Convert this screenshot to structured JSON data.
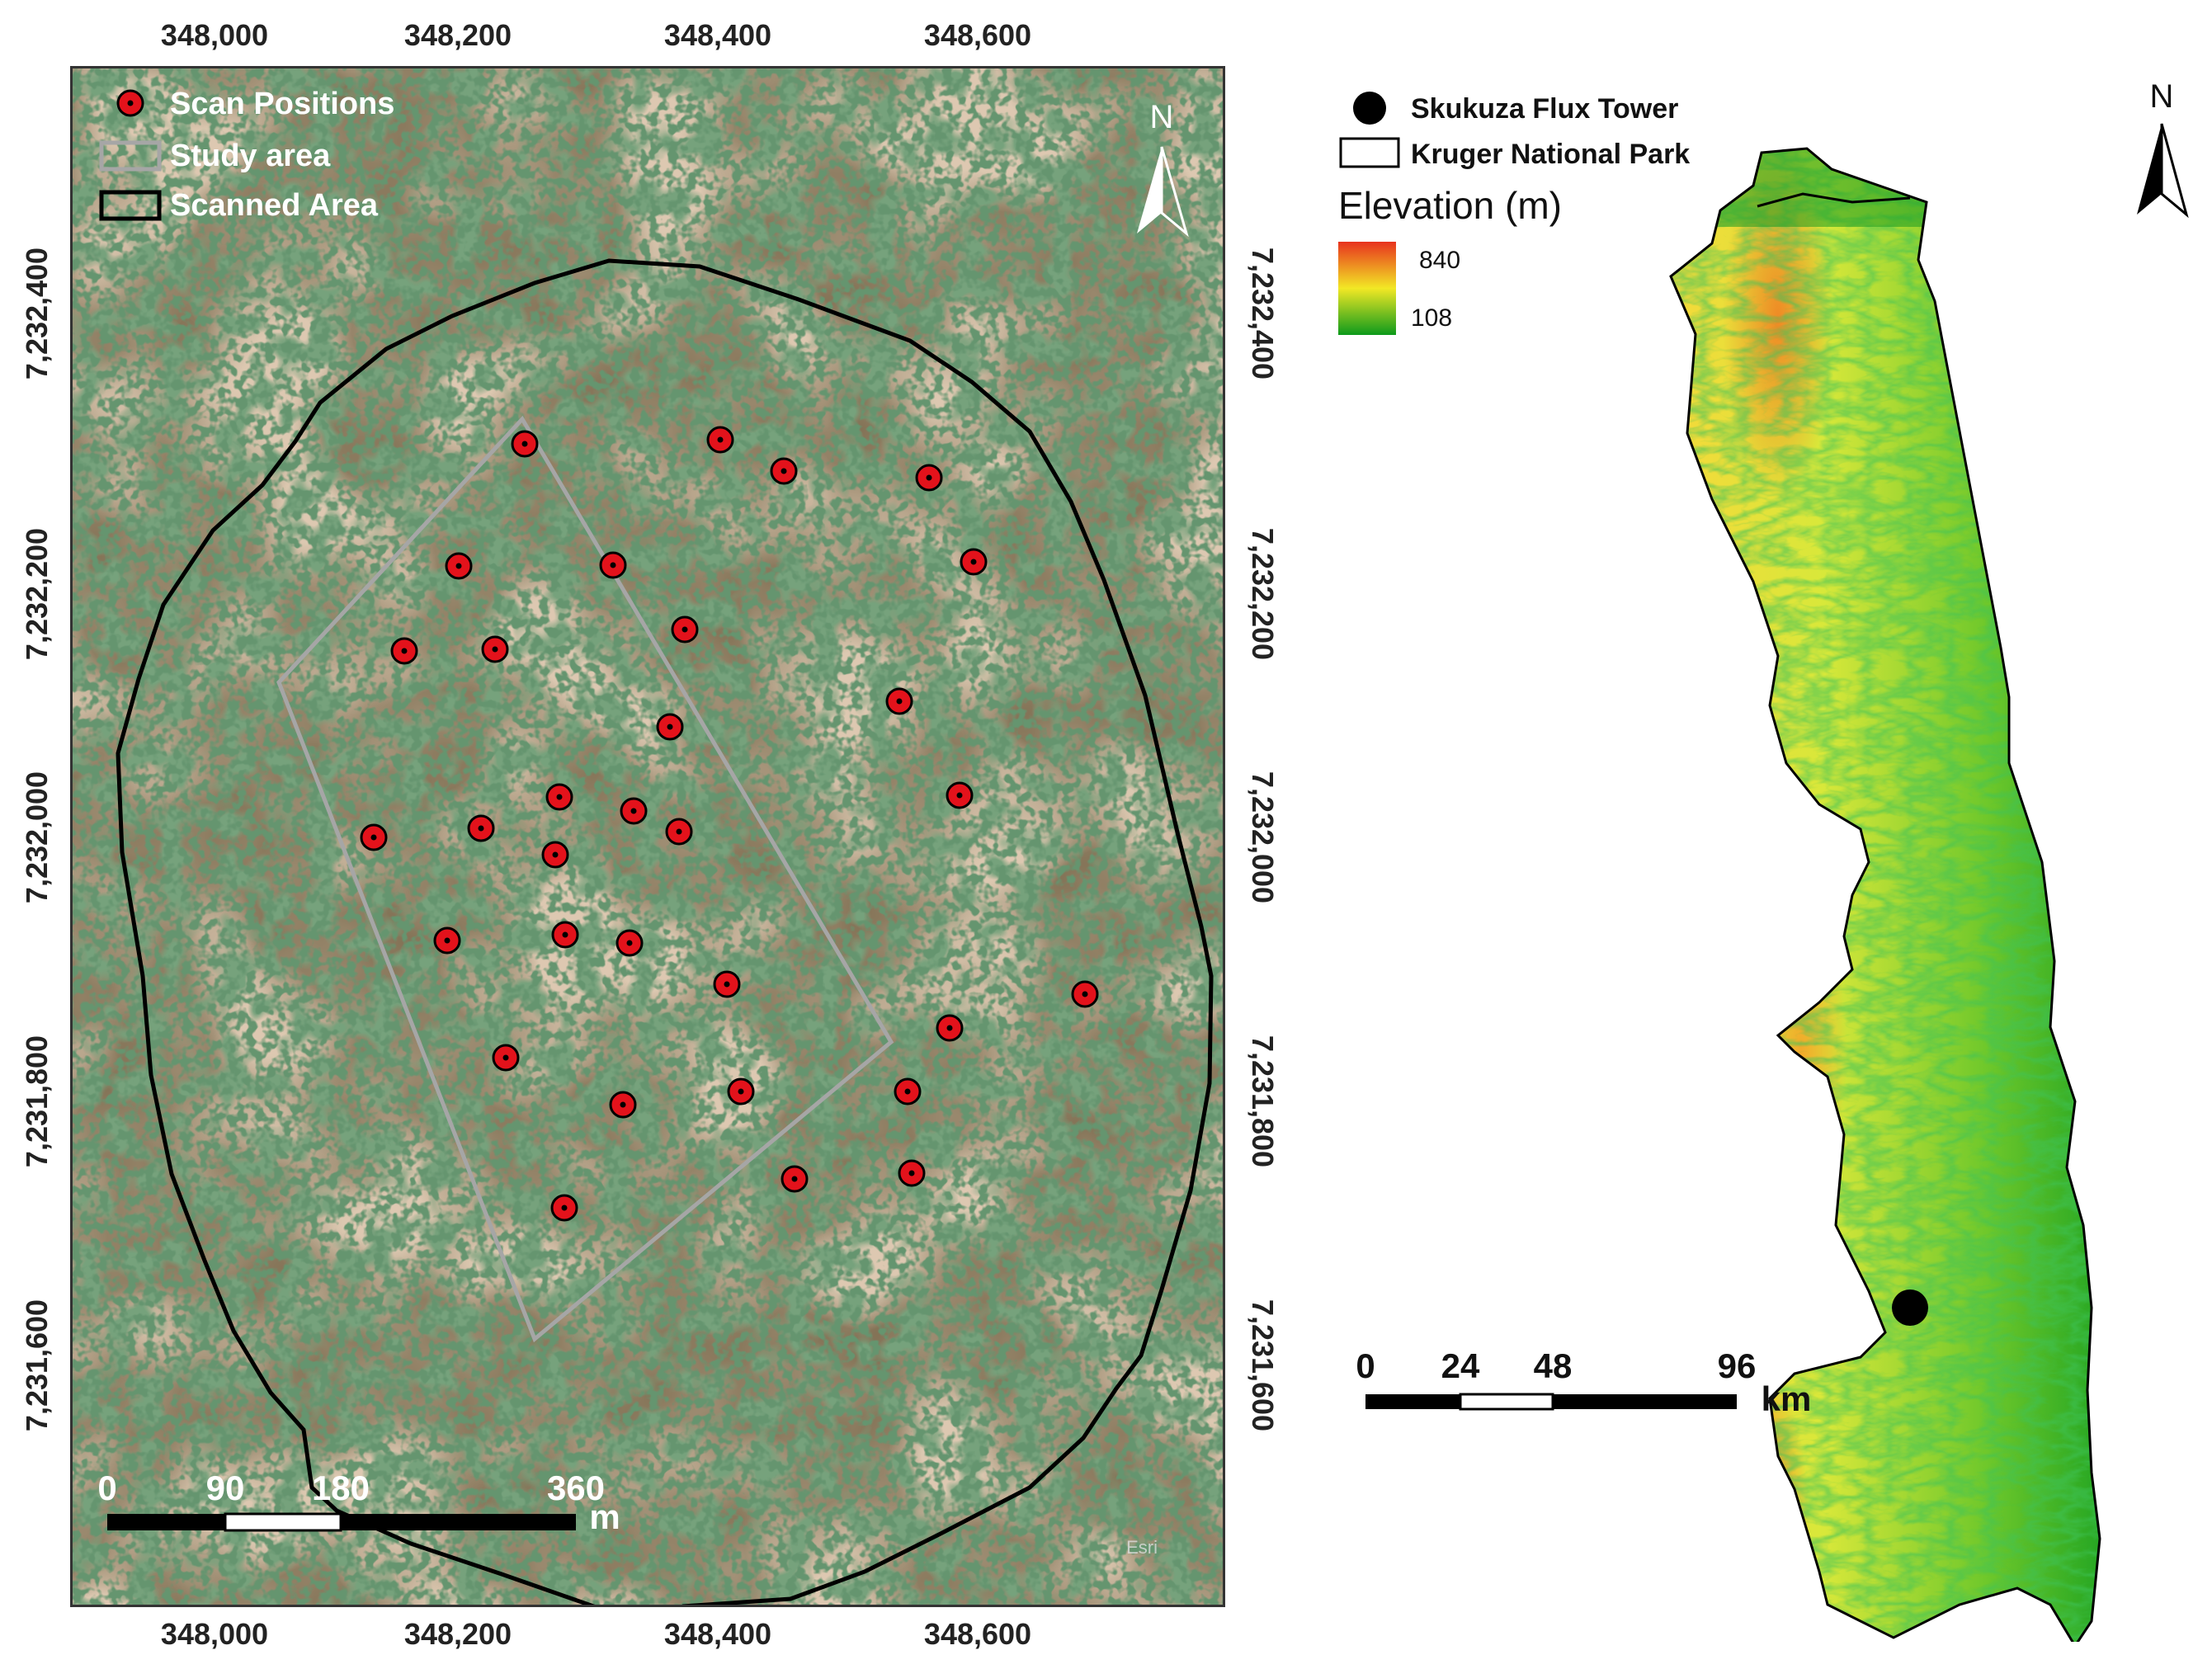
{
  "left_map": {
    "x_ticks": [
      "348,000",
      "348,200",
      "348,400",
      "348,600"
    ],
    "y_ticks": [
      "7,232,400",
      "7,232,200",
      "7,232,000",
      "7,231,800",
      "7,231,600"
    ],
    "legend": {
      "scan_positions": "Scan Positions",
      "study_area": "Study area",
      "scanned_area": "Scanned Area"
    },
    "north": "N",
    "scale_labels": [
      "0",
      "90",
      "180",
      "360"
    ],
    "scale_unit": "m",
    "watermark": "Esri",
    "colors": {
      "scan_marker": "#e3121b",
      "study_area": "#a6a6a6",
      "scanned_area": "#000000"
    }
  },
  "right_map": {
    "legend": {
      "tower": "Skukuza Flux Tower",
      "park": "Kruger National Park",
      "elevation_title": "Elevation (m)",
      "elev_max": "840",
      "elev_min": "108"
    },
    "north": "N",
    "scale_labels": [
      "0",
      "24",
      "48",
      "96"
    ],
    "scale_unit": "km",
    "colors": {
      "elev_high": "#e8321e",
      "elev_mid": "#f2e825",
      "elev_low": "#0d9a1c"
    }
  }
}
